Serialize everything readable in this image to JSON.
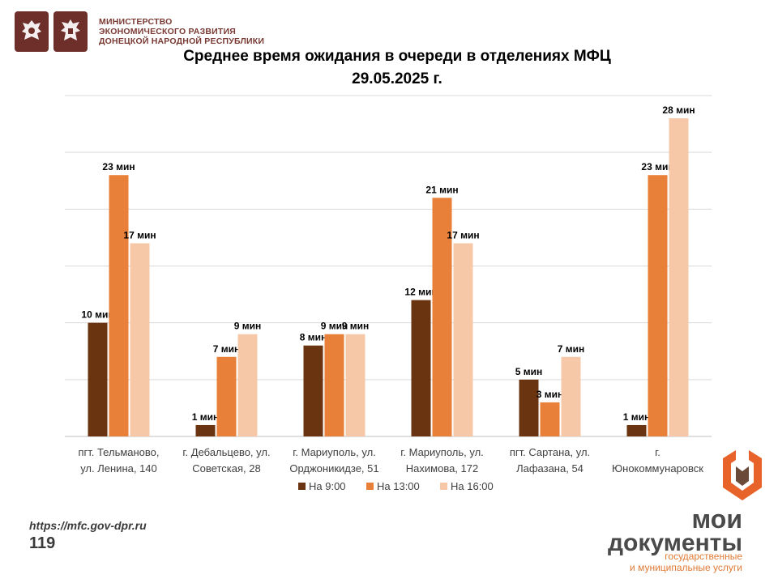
{
  "header": {
    "ministry_lines": [
      "МИНИСТЕРСТВО",
      "ЭКОНОМИЧЕСКОГО РАЗВИТИЯ",
      "ДОНЕЦКОЙ НАРОДНОЙ РЕСПУБЛИКИ"
    ]
  },
  "title_line1": "Среднее время ожидания в очереди в отделениях МФЦ",
  "title_line2": "29.05.2025  г.",
  "chart_data": {
    "type": "bar",
    "categories": [
      [
        "пгт. Тельманово,",
        "ул. Ленина, 140"
      ],
      [
        "г. Дебальцево, ул.",
        "Советская, 28"
      ],
      [
        "г. Мариуполь, ул.",
        "Орджоникидзе, 51"
      ],
      [
        "г. Мариуполь, ул.",
        "Нахимова, 172"
      ],
      [
        "пгт. Сартана, ул.",
        "Лафазана, 54"
      ],
      [
        "г.",
        "Юнокоммунаровск"
      ]
    ],
    "series": [
      {
        "name": "На 9:00",
        "color": "#6b3410",
        "values": [
          10,
          1,
          8,
          12,
          5,
          1
        ],
        "labels": [
          "10 мин",
          "1 мин",
          "8 мин",
          "12 мин",
          "5 мин",
          "1 мин"
        ]
      },
      {
        "name": "На 13:00",
        "color": "#e8803a",
        "values": [
          23,
          7,
          9,
          21,
          3,
          23
        ],
        "labels": [
          "23 мин",
          "7 мин",
          "9  мин",
          "21 мин",
          "3 мин",
          "23 мин"
        ]
      },
      {
        "name": "На 16:00",
        "color": "#f6c8a8",
        "values": [
          17,
          9,
          9,
          17,
          7,
          28
        ],
        "labels": [
          "17 мин",
          "9 мин",
          "9 мин",
          "17 мин",
          "7 мин",
          "28 мин"
        ]
      }
    ],
    "ylim": [
      0,
      30
    ],
    "y_gridlines": [
      5,
      10,
      15,
      20,
      25,
      30
    ],
    "grid": true,
    "y_tick_labels": false,
    "legend": "bottom"
  },
  "footer": {
    "url": "https://mfc.gov-dpr.ru",
    "page": "119",
    "brand_line1": "мои",
    "brand_line2": "документы",
    "brand_sub1": "государственные",
    "brand_sub2": "и муниципальные услуги"
  }
}
